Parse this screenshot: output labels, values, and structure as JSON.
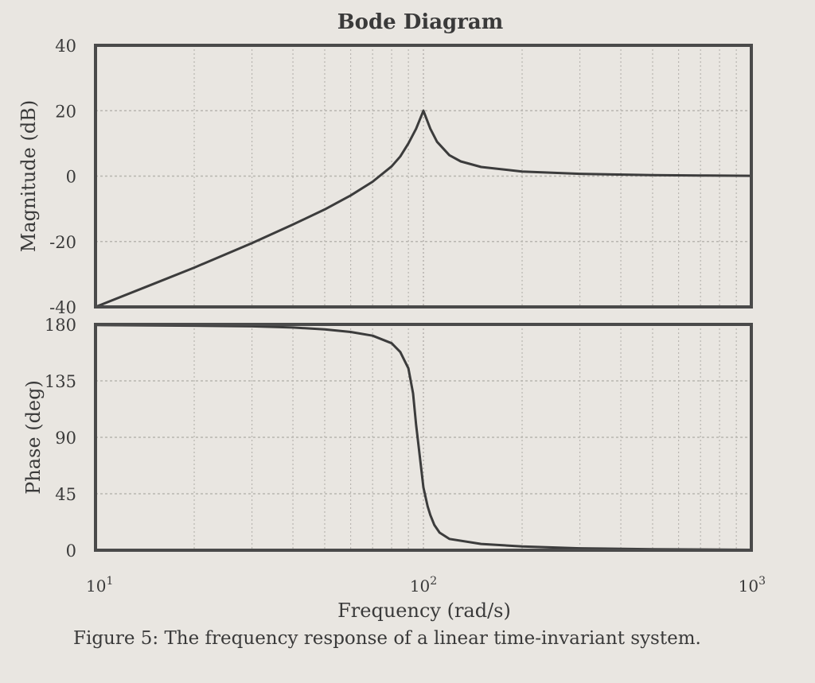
{
  "chart_data": [
    {
      "type": "line",
      "panel": "magnitude",
      "title": "Bode Diagram",
      "ylabel": "Magnitude (dB)",
      "xscale": "log",
      "xlim": [
        10,
        1000
      ],
      "ylim": [
        -40,
        40
      ],
      "yticks": [
        "40",
        "20",
        "0",
        "-20",
        "-40"
      ],
      "grid": true,
      "series": [
        {
          "x": [
            10,
            15,
            20,
            30,
            40,
            50,
            60,
            70,
            80,
            85,
            90,
            95,
            100,
            105,
            110,
            120,
            130,
            150,
            200,
            300,
            500,
            700,
            1000
          ],
          "y": [
            -40,
            -33,
            -28,
            -20.5,
            -14.8,
            -10.2,
            -5.9,
            -1.7,
            3,
            6,
            10,
            14.5,
            20,
            14.5,
            10.5,
            6.4,
            4.5,
            2.8,
            1.4,
            0.7,
            0.3,
            0.2,
            0.1
          ]
        }
      ]
    },
    {
      "type": "line",
      "panel": "phase",
      "xlabel": "Frequency  (rad/s)",
      "ylabel": "Phase (deg)",
      "xscale": "log",
      "xlim": [
        10,
        1000
      ],
      "ylim": [
        0,
        180
      ],
      "yticks": [
        "180",
        "135",
        "90",
        "45",
        "0"
      ],
      "xticks": [
        {
          "base": "10",
          "exp": "1",
          "value": 10
        },
        {
          "base": "10",
          "exp": "2",
          "value": 100
        },
        {
          "base": "10",
          "exp": "3",
          "value": 1000
        }
      ],
      "grid": true,
      "series": [
        {
          "x": [
            10,
            20,
            30,
            40,
            50,
            60,
            70,
            80,
            85,
            90,
            93,
            95,
            97,
            100,
            103,
            105,
            108,
            112,
            120,
            150,
            200,
            300,
            500,
            1000
          ],
          "y": [
            179.5,
            179,
            178.5,
            177.5,
            176,
            174,
            171,
            165,
            158,
            145,
            125,
            100,
            80,
            50,
            35,
            28,
            20,
            14,
            9,
            5,
            3,
            1.5,
            0.8,
            0.3
          ]
        }
      ]
    }
  ],
  "caption": "Figure 5:  The frequency response of a linear time-invariant system.",
  "colors": {
    "curve": "#3c3c3c",
    "frame": "#4a4a4a",
    "grid": "#b8b5b0",
    "paper": "#e9e6e1"
  }
}
